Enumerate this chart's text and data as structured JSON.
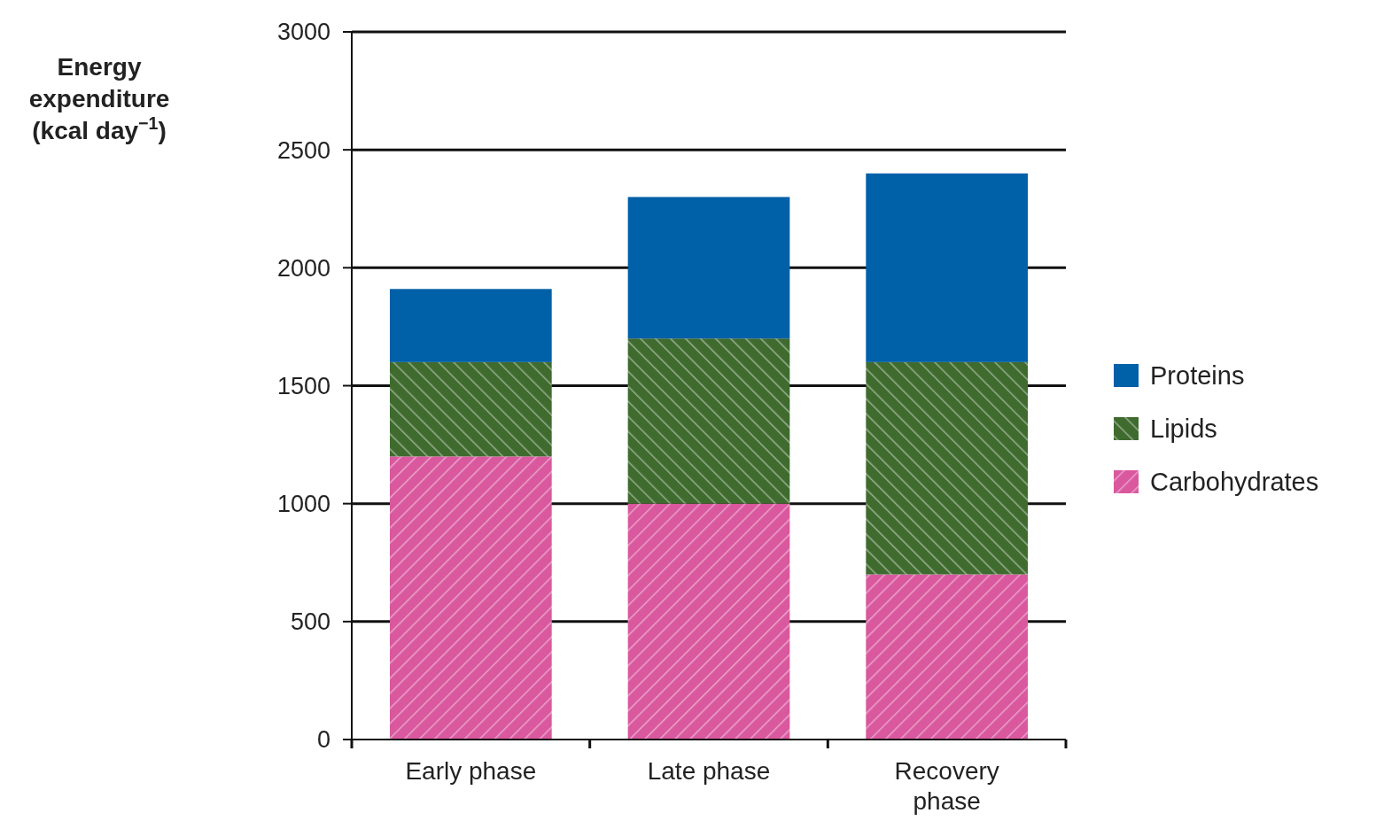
{
  "chart_data": {
    "type": "bar",
    "stacked": true,
    "ylabel": "Energy expenditure (kcal day$^{−1}$)",
    "categories": [
      "Early phase",
      "Late phase",
      "Recovery phase"
    ],
    "series": [
      {
        "name": "Carbohydrates",
        "color": "#d9589e",
        "values": [
          1200,
          1000,
          700
        ]
      },
      {
        "name": "Lipids",
        "color": "#3f6b2f",
        "values": [
          400,
          700,
          900
        ]
      },
      {
        "name": "Proteins",
        "color": "#0060a8",
        "values": [
          310,
          600,
          800
        ]
      }
    ],
    "ylim": [
      0,
      3000
    ],
    "yticks": [
      0,
      500,
      1000,
      1500,
      2000,
      2500,
      3000
    ],
    "grid": "y",
    "legend": "right"
  }
}
